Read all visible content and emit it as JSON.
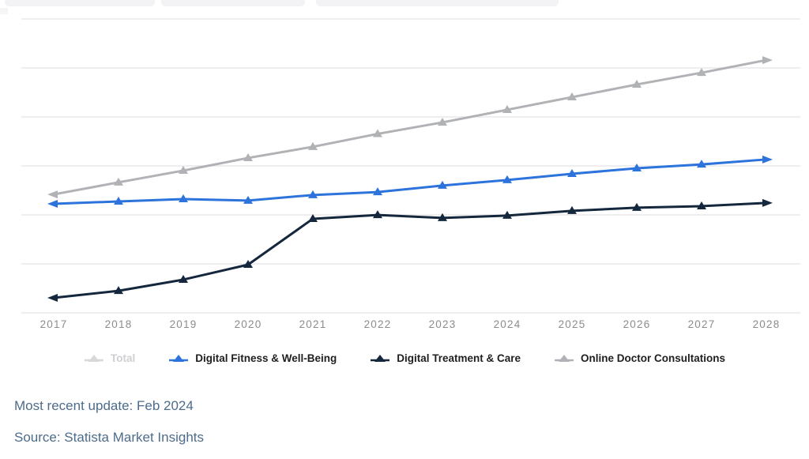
{
  "chart_data": {
    "type": "line",
    "title": "",
    "xlabel": "",
    "ylabel": "",
    "categories": [
      "2017",
      "2018",
      "2019",
      "2020",
      "2021",
      "2022",
      "2023",
      "2024",
      "2025",
      "2026",
      "2027",
      "2028"
    ],
    "series": [
      {
        "name": "Total",
        "color": "#d6d8da",
        "label_color": "#cdcfd2",
        "disabled": true,
        "values": null
      },
      {
        "name": "Digital Fitness & Well-Being",
        "color": "#2d73dc",
        "disabled": false,
        "values": [
          37.1,
          37.9,
          38.7,
          38.2,
          40.1,
          41.1,
          43.3,
          45.2,
          47.3,
          49.2,
          50.5,
          52.2
        ]
      },
      {
        "name": "Digital Treatment & Care",
        "color": "#14273d",
        "disabled": false,
        "values": [
          5.1,
          7.5,
          11.3,
          16.4,
          32.0,
          33.3,
          32.3,
          33.1,
          34.7,
          35.8,
          36.3,
          37.4
        ]
      },
      {
        "name": "Online Doctor Consultations",
        "color": "#b0b2b5",
        "disabled": false,
        "values": [
          40.3,
          44.4,
          48.4,
          52.7,
          56.5,
          60.9,
          64.8,
          69.1,
          73.4,
          77.7,
          81.7,
          86.0
        ]
      }
    ],
    "ylim": [
      0,
      100
    ],
    "y_axis_labels_visible": false,
    "value_units": "relative index (y-axis unlabeled: 0 = bottom gridline, 100 = top gridline)",
    "gridlines": {
      "horizontal_count": 7,
      "color": "#e9e9ec",
      "on": true
    },
    "legend_position": "bottom",
    "tick_label_color": "#8c8c8e",
    "legend_text_color": "#1f1f1f",
    "marker_shape": "triangle"
  },
  "footer": {
    "updated": "Most recent update: Feb 2024",
    "source": "Source: Statista Market Insights"
  }
}
